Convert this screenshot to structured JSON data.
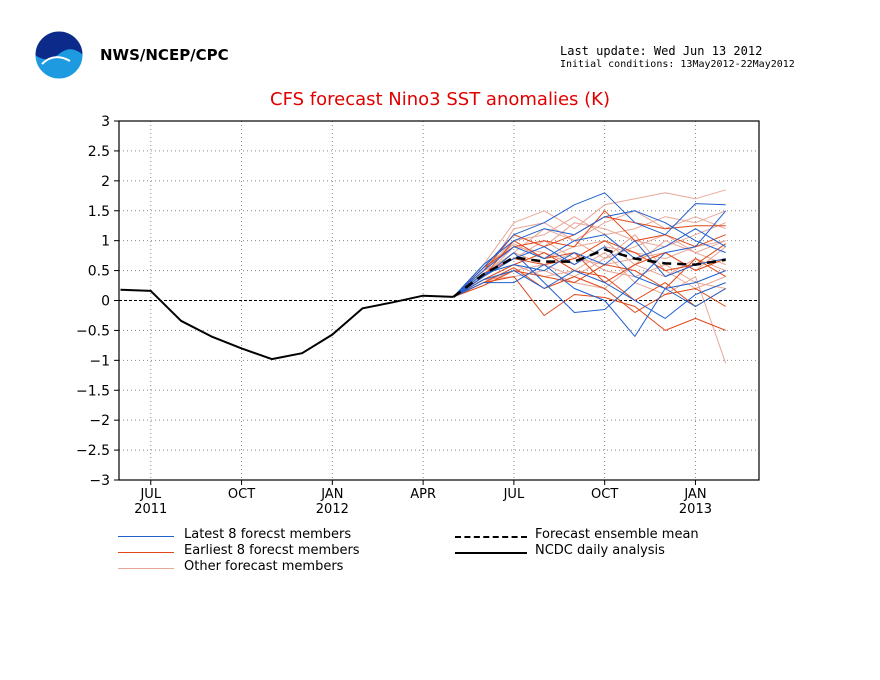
{
  "header": {
    "org": "NWS/NCEP/CPC",
    "last_update": "Last update: Wed Jun 13 2012",
    "initial_conditions": "Initial conditions: 13May2012-22May2012"
  },
  "colors": {
    "title": "#e00000",
    "latest": "#2060d0",
    "earliest": "#e04818",
    "other": "#e8a898",
    "mean": "#000000",
    "analysis": "#000000"
  },
  "chart_data": {
    "type": "line",
    "title": "CFS forecast Nino3 SST anomalies (K)",
    "xlabel": "",
    "ylabel": "",
    "ylim": [
      -3,
      3
    ],
    "yticks": [
      -3,
      -2.5,
      -2,
      -1.5,
      -1,
      -0.5,
      0,
      0.5,
      1,
      1.5,
      2,
      2.5,
      3
    ],
    "xlim": [
      "2011-06",
      "2013-03"
    ],
    "xticks": [
      {
        "label": "JUL",
        "sub": "2011",
        "x": "2011-07"
      },
      {
        "label": "OCT",
        "sub": "",
        "x": "2011-10"
      },
      {
        "label": "JAN",
        "sub": "2012",
        "x": "2012-01"
      },
      {
        "label": "APR",
        "sub": "",
        "x": "2012-04"
      },
      {
        "label": "JUL",
        "sub": "",
        "x": "2012-07"
      },
      {
        "label": "OCT",
        "sub": "",
        "x": "2012-10"
      },
      {
        "label": "JAN",
        "sub": "2013",
        "x": "2013-01"
      }
    ],
    "grid": true,
    "zero_line": true,
    "series": [
      {
        "name": "NCDC daily analysis",
        "style": "analysis",
        "x": [
          "2011-06",
          "2011-07",
          "2011-08",
          "2011-09",
          "2011-10",
          "2011-11",
          "2011-12",
          "2012-01",
          "2012-02",
          "2012-03",
          "2012-04",
          "2012-05"
        ],
        "y": [
          0.18,
          0.16,
          -0.34,
          -0.6,
          -0.8,
          -0.98,
          -0.88,
          -0.57,
          -0.13,
          -0.03,
          0.08,
          0.06
        ]
      },
      {
        "name": "Forecast ensemble mean",
        "style": "mean",
        "x": [
          "2012-05",
          "2012-06",
          "2012-07",
          "2012-08",
          "2012-09",
          "2012-10",
          "2012-11",
          "2012-12",
          "2013-01",
          "2013-02"
        ],
        "y": [
          0.06,
          0.44,
          0.72,
          0.65,
          0.65,
          0.85,
          0.7,
          0.62,
          0.6,
          0.68
        ]
      }
    ],
    "ensemble": {
      "x": [
        "2012-05",
        "2012-06",
        "2012-07",
        "2012-08",
        "2012-09",
        "2012-10",
        "2012-11",
        "2012-12",
        "2013-01",
        "2013-02"
      ],
      "latest": [
        [
          0.06,
          0.55,
          1.1,
          1.3,
          1.6,
          1.8,
          1.3,
          1.1,
          1.62,
          1.6
        ],
        [
          0.06,
          0.4,
          0.8,
          0.3,
          -0.2,
          -0.15,
          0.3,
          0.8,
          0.9,
          1.5
        ],
        [
          0.06,
          0.3,
          0.3,
          0.6,
          0.2,
          0.0,
          -0.6,
          0.2,
          -0.1,
          0.2
        ],
        [
          0.06,
          0.5,
          0.9,
          0.7,
          1.0,
          1.1,
          0.7,
          0.9,
          1.2,
          0.9
        ],
        [
          0.06,
          0.45,
          0.6,
          0.5,
          0.8,
          0.6,
          1.0,
          0.4,
          0.6,
          0.7
        ],
        [
          0.06,
          0.35,
          0.5,
          0.2,
          0.5,
          0.3,
          0.0,
          -0.3,
          0.1,
          0.3
        ],
        [
          0.06,
          0.6,
          1.0,
          1.2,
          1.1,
          1.4,
          1.5,
          1.3,
          1.0,
          0.8
        ],
        [
          0.06,
          0.4,
          0.7,
          0.9,
          0.6,
          0.9,
          0.4,
          0.2,
          0.3,
          0.5
        ]
      ],
      "earliest": [
        [
          0.06,
          0.5,
          1.1,
          0.9,
          1.1,
          1.4,
          1.3,
          1.2,
          1.25,
          1.25
        ],
        [
          0.06,
          0.3,
          0.4,
          -0.25,
          0.1,
          0.05,
          -0.1,
          -0.5,
          -0.3,
          -0.5
        ],
        [
          0.06,
          0.45,
          0.7,
          0.6,
          0.7,
          1.0,
          0.8,
          0.5,
          0.6,
          0.95
        ],
        [
          0.06,
          0.35,
          0.6,
          0.8,
          0.5,
          0.4,
          0.0,
          0.3,
          -0.1,
          0.2
        ],
        [
          0.06,
          0.55,
          0.9,
          1.0,
          0.9,
          1.5,
          1.0,
          1.1,
          0.9,
          1.1
        ],
        [
          0.06,
          0.25,
          0.5,
          0.4,
          0.3,
          0.6,
          0.5,
          0.2,
          0.7,
          0.4
        ],
        [
          0.06,
          0.4,
          1.0,
          0.7,
          0.8,
          0.3,
          0.6,
          0.8,
          0.5,
          0.7
        ],
        [
          0.06,
          0.3,
          0.55,
          0.2,
          0.4,
          0.2,
          -0.2,
          0.1,
          0.2,
          -0.1
        ]
      ],
      "other": [
        [
          0.06,
          0.6,
          1.3,
          1.5,
          1.2,
          1.6,
          1.7,
          1.8,
          1.7,
          1.85
        ],
        [
          0.06,
          0.5,
          1.0,
          1.1,
          1.4,
          1.1,
          1.2,
          1.4,
          1.3,
          1.5
        ],
        [
          0.06,
          0.4,
          0.9,
          0.8,
          0.6,
          0.9,
          0.8,
          0.7,
          0.9,
          1.0
        ],
        [
          0.06,
          0.45,
          0.8,
          1.2,
          1.0,
          0.7,
          0.9,
          1.1,
          0.8,
          0.6
        ],
        [
          0.06,
          0.3,
          0.5,
          0.6,
          0.8,
          0.5,
          0.4,
          0.6,
          0.3,
          0.2
        ],
        [
          0.06,
          0.35,
          0.6,
          0.4,
          0.5,
          0.8,
          0.3,
          0.1,
          0.4,
          -1.05
        ],
        [
          0.06,
          0.55,
          1.1,
          0.9,
          1.3,
          1.2,
          1.0,
          0.9,
          1.1,
          1.3
        ],
        [
          0.06,
          0.5,
          0.7,
          1.0,
          0.7,
          0.6,
          0.7,
          0.8,
          0.5,
          0.9
        ],
        [
          0.06,
          0.4,
          1.2,
          1.3,
          1.0,
          1.3,
          1.5,
          1.2,
          1.4,
          1.2
        ],
        [
          0.06,
          0.35,
          0.4,
          0.5,
          0.3,
          0.2,
          0.6,
          0.4,
          0.7,
          0.5
        ],
        [
          0.06,
          0.5,
          0.95,
          0.7,
          0.9,
          1.0,
          0.6,
          1.0,
          0.8,
          1.0
        ],
        [
          0.06,
          0.45,
          0.8,
          0.6,
          0.4,
          0.7,
          1.1,
          0.5,
          0.2,
          0.4
        ]
      ]
    },
    "legend": [
      {
        "label": "Latest 8 forecst members",
        "style": "latest"
      },
      {
        "label": "Earliest 8 forecst members",
        "style": "earliest"
      },
      {
        "label": "Other forecast members",
        "style": "other"
      },
      {
        "label": "Forecast ensemble mean",
        "style": "mean"
      },
      {
        "label": "NCDC daily analysis",
        "style": "analysis"
      }
    ]
  }
}
